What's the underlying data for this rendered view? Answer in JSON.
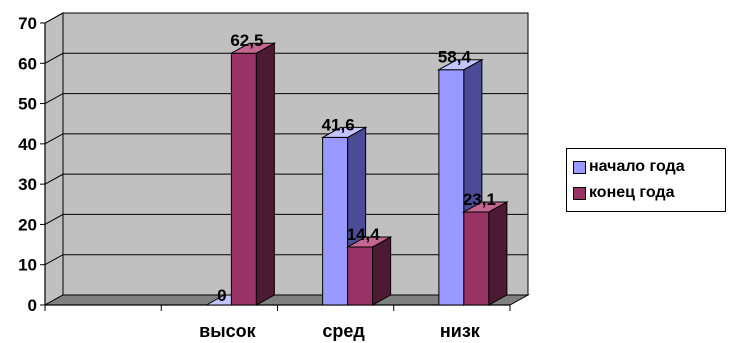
{
  "chart_data": {
    "type": "bar",
    "categories": [
      "",
      "высок",
      "сред",
      "низк"
    ],
    "series": [
      {
        "name": "начало года",
        "values": [
          null,
          0,
          41.6,
          58.4
        ],
        "labels": [
          "",
          "0",
          "41,6",
          "58,4"
        ]
      },
      {
        "name": "конец года",
        "values": [
          null,
          62.5,
          14.4,
          23.1
        ],
        "labels": [
          "",
          "62,5",
          "14,4",
          "23,1"
        ]
      }
    ],
    "y_ticks": [
      "0",
      "10",
      "20",
      "30",
      "40",
      "50",
      "60",
      "70"
    ],
    "ylim": [
      0,
      70
    ],
    "grid": true,
    "three_d": true,
    "legend_position": "right",
    "colors": {
      "wall": "#c0c0c0",
      "floor": "#808080",
      "series_front": [
        "#9999ff",
        "#993366"
      ],
      "series_side": [
        "#4b4b96",
        "#4d1a33"
      ],
      "series_top": [
        "#c4c4ff",
        "#c46690"
      ]
    }
  }
}
